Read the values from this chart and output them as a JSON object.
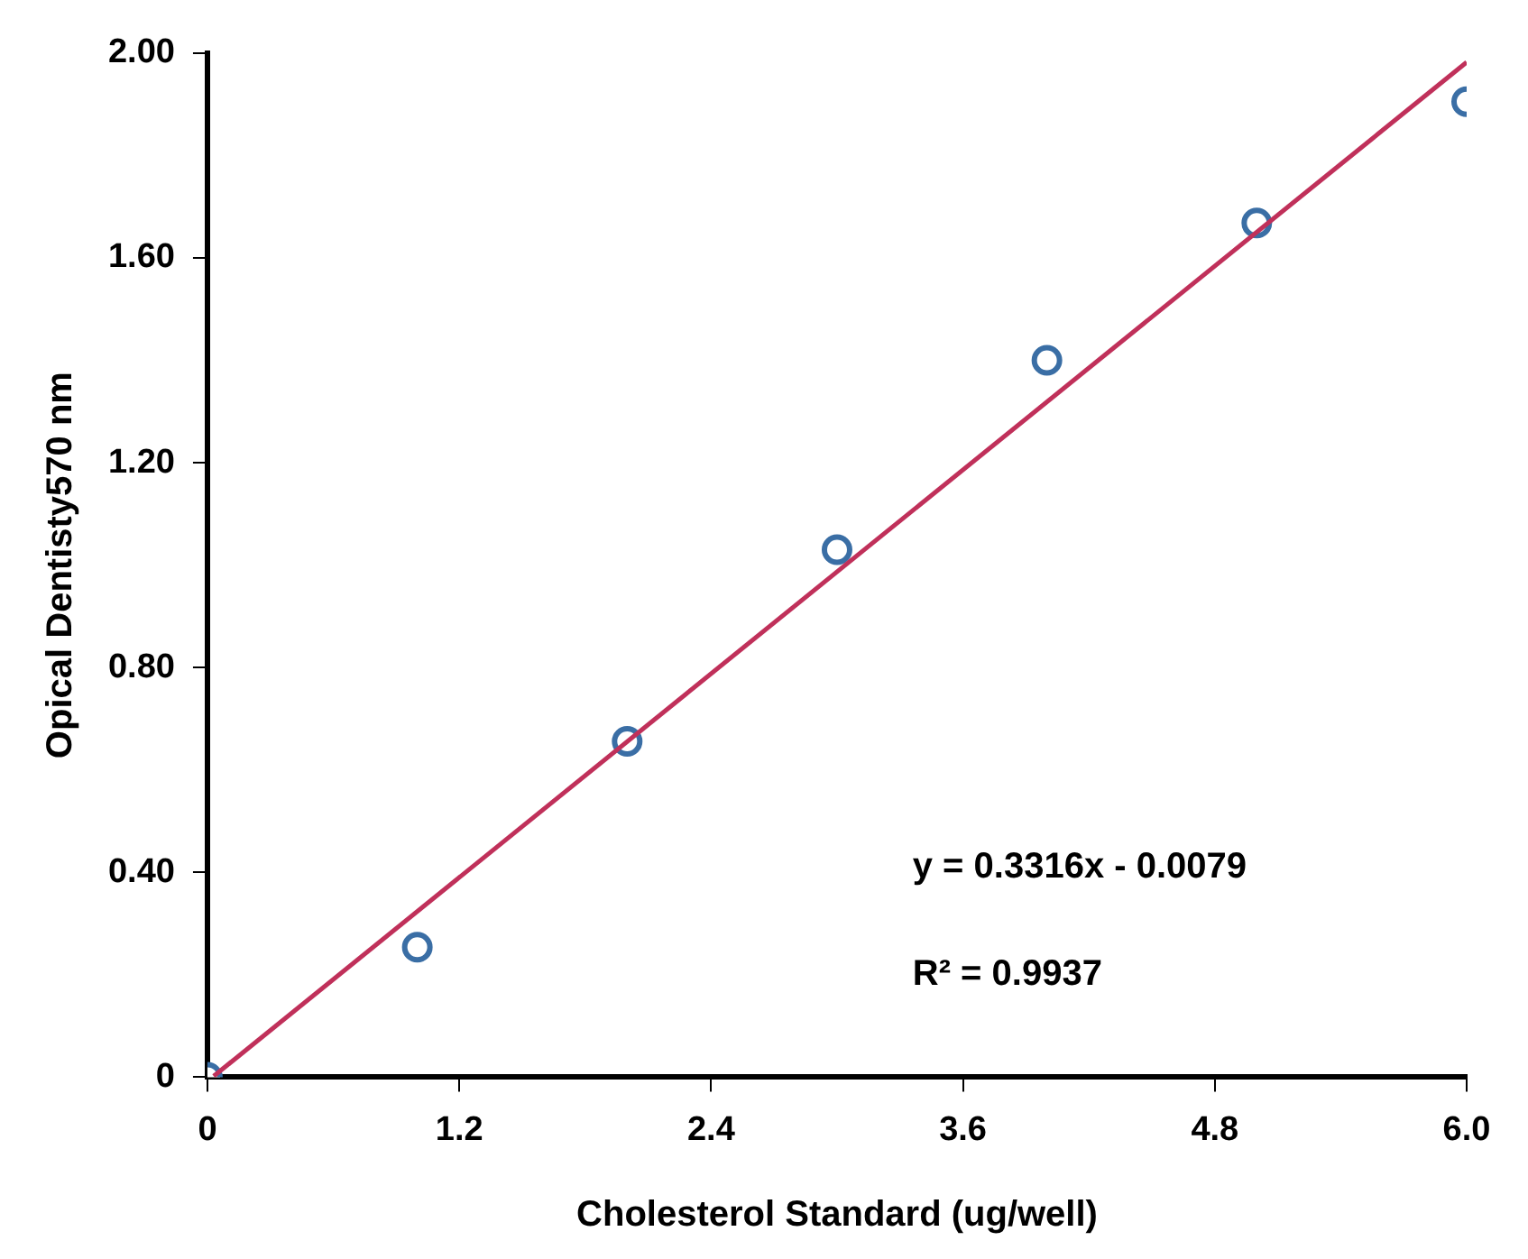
{
  "chart_data": {
    "type": "scatter",
    "xlabel": "Cholesterol Standard (ug/well)",
    "ylabel": "Opical Dentisty570 nm",
    "xlim": [
      0,
      6
    ],
    "xticks": [
      0,
      1.2,
      2.4,
      3.6,
      4.8,
      {
        "value": 6,
        "label": "6.0"
      }
    ],
    "ylim": [
      0,
      2
    ],
    "yticks": [
      0,
      {
        "value": 0.4,
        "label": "0.40"
      },
      {
        "value": 0.8,
        "label": "0.80"
      },
      {
        "value": 1.2,
        "label": "1.20"
      },
      {
        "value": 1.6,
        "label": "1.60"
      },
      {
        "value": 2,
        "label": "2.00"
      }
    ],
    "grid": false,
    "legend": false,
    "series": [
      {
        "type": "line",
        "color": "#c0305a",
        "x": [
          0.03,
          6
        ],
        "values": [
          0.002,
          1.982
        ],
        "marker": "none"
      },
      {
        "type": "scatter",
        "color": "#3a6ea5",
        "x": [
          0,
          1,
          2,
          3,
          4,
          5,
          6
        ],
        "values": [
          0,
          0.254,
          0.656,
          1.03,
          1.4,
          1.668,
          1.905
        ],
        "marker": "circle"
      }
    ],
    "annotations": [
      "y = 0.3316x - 0.0079",
      "R² = 0.9937"
    ]
  }
}
